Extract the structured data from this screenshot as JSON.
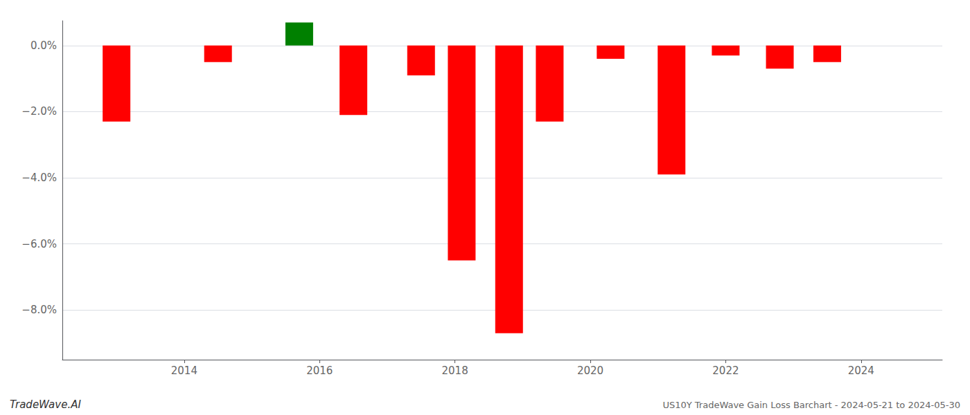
{
  "chart_data": {
    "type": "bar",
    "x": [
      2013.0,
      2014.5,
      2015.7,
      2016.5,
      2017.5,
      2018.1,
      2018.8,
      2019.4,
      2020.3,
      2021.2,
      2022.0,
      2022.8,
      2023.5
    ],
    "values": [
      -2.3,
      -0.5,
      0.7,
      -2.1,
      -0.9,
      -6.5,
      -8.7,
      -2.3,
      -0.4,
      -3.9,
      -0.3,
      -0.7,
      -0.5
    ],
    "colors": [
      "#ff0000",
      "#ff0000",
      "#008000",
      "#ff0000",
      "#ff0000",
      "#ff0000",
      "#ff0000",
      "#ff0000",
      "#ff0000",
      "#ff0000",
      "#ff0000",
      "#ff0000",
      "#ff0000"
    ],
    "xlim": [
      2012.2,
      2025.2
    ],
    "xticks": [
      2014,
      2016,
      2018,
      2020,
      2022,
      2024
    ],
    "ylim": [
      -9.5,
      0.75
    ],
    "yticks": [
      {
        "value": 0.0,
        "label": "0.0%"
      },
      {
        "value": -2.0,
        "label": "−2.0%"
      },
      {
        "value": -4.0,
        "label": "−4.0%"
      },
      {
        "value": -6.0,
        "label": "−6.0%"
      },
      {
        "value": -8.0,
        "label": "−8.0%"
      }
    ],
    "grid": true,
    "annotations": [
      "TradeWave.AI",
      "US10Y TradeWave Gain Loss Barchart - 2024-05-21 to 2024-05-30"
    ]
  }
}
